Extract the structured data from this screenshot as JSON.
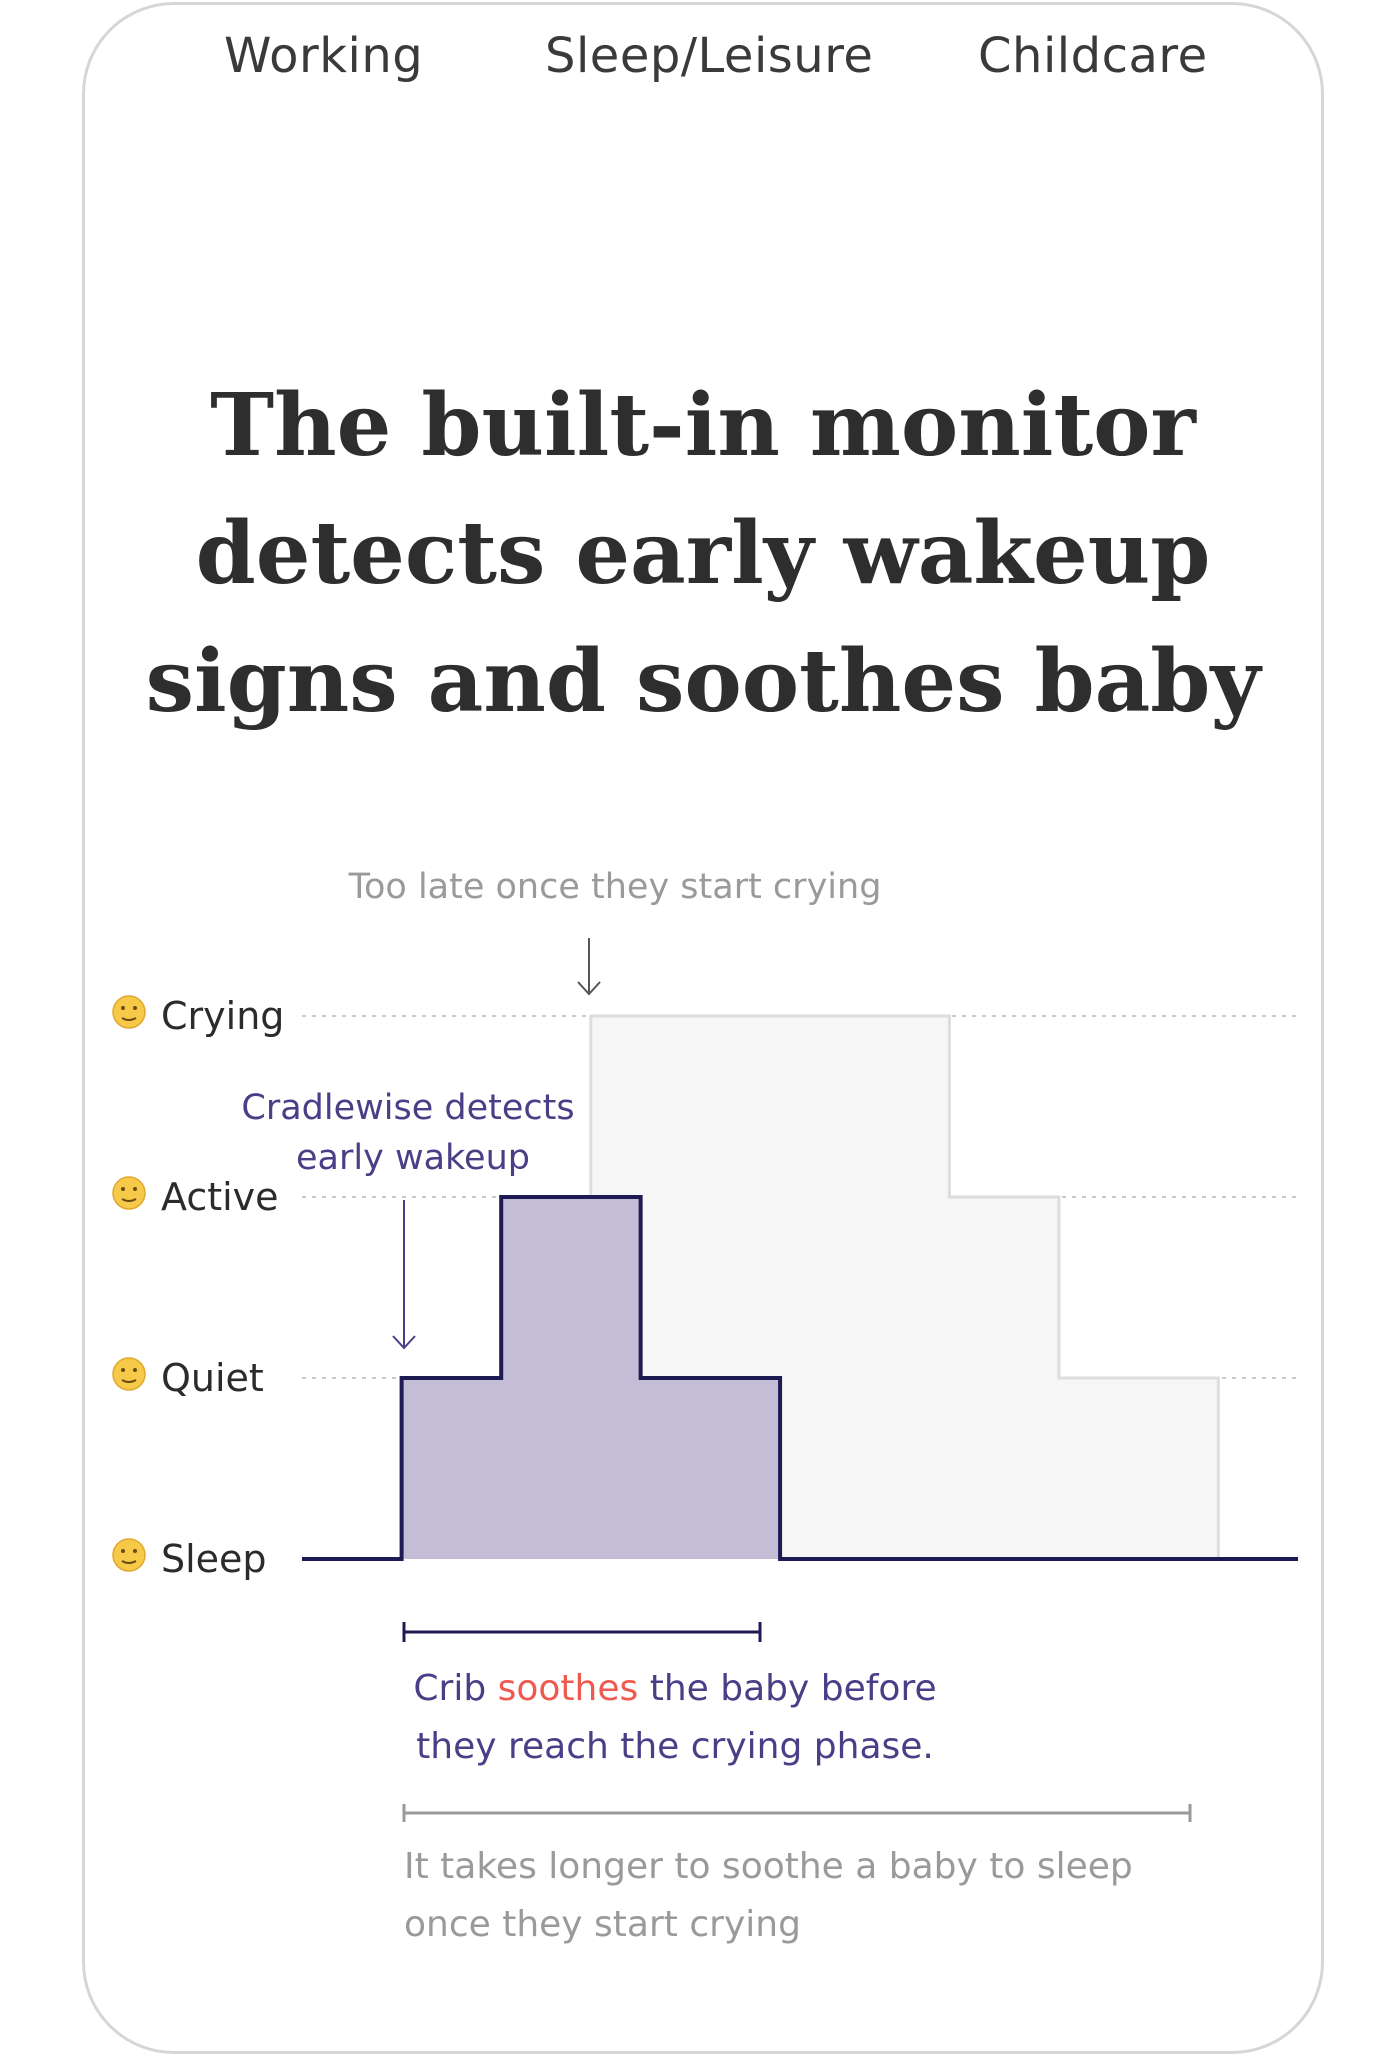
{
  "tabs": [
    {
      "label": "Working"
    },
    {
      "label": "Sleep/Leisure"
    },
    {
      "label": "Childcare"
    }
  ],
  "headline": {
    "line1": "The built-in monitor",
    "line2": "detects early wakeup",
    "line3": "signs and soothes baby"
  },
  "colors": {
    "accent": "#4a3f87",
    "accent_fill": "#c3bed5",
    "dark_line": "#1e1a54",
    "highlight": "#ee5a4f",
    "muted_fill": "#f6f6f6",
    "muted_line": "#dddddd",
    "muted_text": "#9a9a9a"
  },
  "chart_data": {
    "type": "area",
    "step": true,
    "levels": [
      {
        "name": "Sleep",
        "value": 0,
        "icon": "sleeping-face-emoji"
      },
      {
        "name": "Quiet",
        "value": 1,
        "icon": "shushing-face-emoji"
      },
      {
        "name": "Active",
        "value": 2,
        "icon": "hugging-face-emoji"
      },
      {
        "name": "Crying",
        "value": 3,
        "icon": "crying-face-emoji"
      }
    ],
    "series": [
      {
        "role": "with-cradlewise",
        "points": [
          [
            0,
            0
          ],
          [
            1,
            0
          ],
          [
            1,
            1
          ],
          [
            2,
            1
          ],
          [
            2,
            2
          ],
          [
            3.4,
            2
          ],
          [
            3.4,
            1
          ],
          [
            4.8,
            1
          ],
          [
            4.8,
            0
          ],
          [
            10,
            0
          ]
        ]
      },
      {
        "role": "without-cradlewise",
        "points": [
          [
            2.9,
            0
          ],
          [
            2.9,
            3
          ],
          [
            6.5,
            3
          ],
          [
            6.5,
            2
          ],
          [
            7.6,
            2
          ],
          [
            7.6,
            1
          ],
          [
            9.2,
            1
          ],
          [
            9.2,
            0
          ]
        ]
      }
    ],
    "xlim": [
      0,
      10
    ],
    "ylim": [
      0,
      3
    ],
    "grid": "dotted",
    "annotations": {
      "too_late": "Too late once they start crying",
      "detects_line1": "Cradlewise detects",
      "detects_line2": "early wakeup"
    }
  },
  "captions": {
    "soothe_prefix": "Crib ",
    "soothe_highlight": "soothes",
    "soothe_suffix_line1": " the baby before",
    "soothe_line2": "they reach the crying phase.",
    "longer_line1": "It takes longer to soothe a baby to sleep",
    "longer_line2": "once they start crying"
  }
}
